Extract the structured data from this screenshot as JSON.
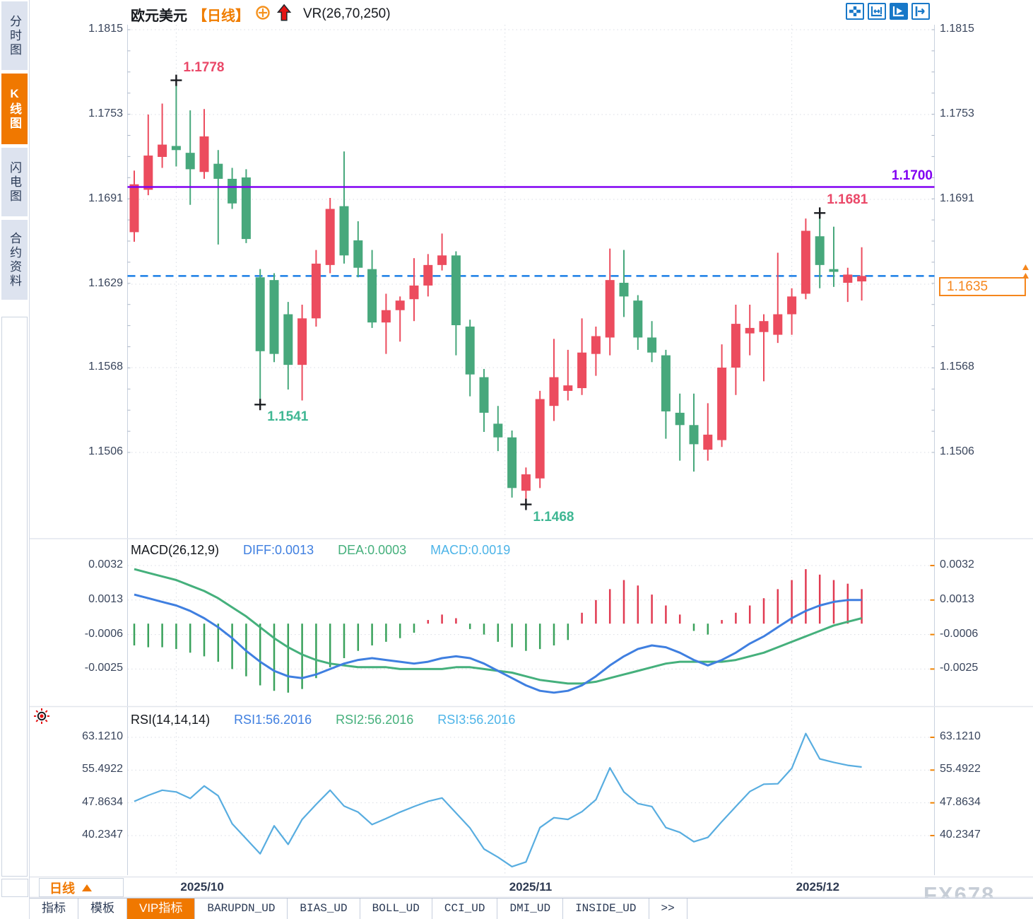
{
  "app": {
    "sidebar": [
      {
        "label": "分时图",
        "active": false
      },
      {
        "label": "K线图",
        "active": true
      },
      {
        "label": "闪电图",
        "active": false
      },
      {
        "label": "合约资料",
        "active": false
      }
    ],
    "title": {
      "symbol": "欧元美元",
      "period": "【日线】",
      "indicator": "VR(26,70,250)"
    },
    "toolbar_icons": [
      "crosshair-icon",
      "axis-range-icon",
      "axis-play-icon",
      "jump-latest-icon"
    ],
    "period_selector": {
      "label": "日线"
    },
    "bottom_tabs": [
      {
        "label": "指标",
        "active": false,
        "mono": false
      },
      {
        "label": "模板",
        "active": false,
        "mono": false
      },
      {
        "label": "VIP指标",
        "active": true,
        "mono": false
      },
      {
        "label": "BARUPDN_UD",
        "active": false,
        "mono": true
      },
      {
        "label": "BIAS_UD",
        "active": false,
        "mono": true
      },
      {
        "label": "BOLL_UD",
        "active": false,
        "mono": true
      },
      {
        "label": "CCI_UD",
        "active": false,
        "mono": true
      },
      {
        "label": "DMI_UD",
        "active": false,
        "mono": true
      },
      {
        "label": "INSIDE_UD",
        "active": false,
        "mono": true
      },
      {
        "label": ">>",
        "active": false,
        "mono": true
      }
    ],
    "watermark": "FX678",
    "colors": {
      "brand_orange": "#f07800",
      "tag_orange": "#f5861c",
      "toolbar_blue": "#1878c8"
    }
  },
  "chart_data": {
    "type": "candlestick",
    "title": "欧元美元 日线",
    "legend_position": "top",
    "grid": true,
    "main": {
      "y_ticks": [
        "1.1815",
        "1.1753",
        "1.1691",
        "1.1629",
        "1.1568",
        "1.1506"
      ],
      "y_top": 1.1815,
      "y_bottom": 1.1506,
      "up_color": "#ec4c5e",
      "down_color": "#47a87c",
      "hline_purple": {
        "price": 1.17,
        "label": "1.1700",
        "color": "#8100f2"
      },
      "hline_current": {
        "price": 1.1635,
        "label": "1.1635",
        "color": "#1a7ee6"
      },
      "candles": [
        [
          1.1667,
          1.1712,
          1.166,
          1.1702
        ],
        [
          1.1698,
          1.1753,
          1.1694,
          1.1723
        ],
        [
          1.1722,
          1.1761,
          1.1714,
          1.1731
        ],
        [
          1.173,
          1.1778,
          1.1715,
          1.1727
        ],
        [
          1.1725,
          1.1756,
          1.1687,
          1.1713
        ],
        [
          1.1711,
          1.1757,
          1.1706,
          1.1737
        ],
        [
          1.1717,
          1.1727,
          1.1658,
          1.1706
        ],
        [
          1.1706,
          1.1714,
          1.1684,
          1.1688
        ],
        [
          1.1707,
          1.1713,
          1.1659,
          1.1662
        ],
        [
          1.1634,
          1.164,
          1.1541,
          1.158
        ],
        [
          1.1632,
          1.1637,
          1.1572,
          1.1578
        ],
        [
          1.1607,
          1.1616,
          1.1552,
          1.157
        ],
        [
          1.157,
          1.1614,
          1.1544,
          1.1604
        ],
        [
          1.1604,
          1.1654,
          1.1598,
          1.1644
        ],
        [
          1.1643,
          1.1692,
          1.1637,
          1.1684
        ],
        [
          1.1686,
          1.1726,
          1.1644,
          1.165
        ],
        [
          1.1661,
          1.1675,
          1.1634,
          1.1641
        ],
        [
          1.164,
          1.1654,
          1.1597,
          1.1601
        ],
        [
          1.1601,
          1.1622,
          1.1578,
          1.161
        ],
        [
          1.161,
          1.162,
          1.1587,
          1.1617
        ],
        [
          1.1618,
          1.1648,
          1.1602,
          1.1628
        ],
        [
          1.1628,
          1.1651,
          1.162,
          1.1643
        ],
        [
          1.1643,
          1.1666,
          1.1639,
          1.165
        ],
        [
          1.165,
          1.1653,
          1.1577,
          1.1599
        ],
        [
          1.1598,
          1.1603,
          1.1547,
          1.1563
        ],
        [
          1.1561,
          1.1567,
          1.1521,
          1.1535
        ],
        [
          1.1527,
          1.154,
          1.1507,
          1.1517
        ],
        [
          1.1517,
          1.1522,
          1.1473,
          1.148
        ],
        [
          1.1478,
          1.1495,
          1.1468,
          1.149
        ],
        [
          1.1487,
          1.1551,
          1.148,
          1.1545
        ],
        [
          1.154,
          1.1589,
          1.1529,
          1.1561
        ],
        [
          1.1551,
          1.1581,
          1.1544,
          1.1555
        ],
        [
          1.1553,
          1.1604,
          1.1548,
          1.1579
        ],
        [
          1.1578,
          1.1598,
          1.1562,
          1.1591
        ],
        [
          1.159,
          1.1655,
          1.1577,
          1.1632
        ],
        [
          1.163,
          1.1654,
          1.1605,
          1.162
        ],
        [
          1.1617,
          1.1621,
          1.1581,
          1.159
        ],
        [
          1.159,
          1.1602,
          1.1572,
          1.1579
        ],
        [
          1.1577,
          1.1581,
          1.1516,
          1.1536
        ],
        [
          1.1535,
          1.1549,
          1.15,
          1.1526
        ],
        [
          1.1526,
          1.1549,
          1.1492,
          1.1512
        ],
        [
          1.1508,
          1.1542,
          1.15,
          1.1519
        ],
        [
          1.1515,
          1.1585,
          1.151,
          1.1568
        ],
        [
          1.1568,
          1.1614,
          1.1548,
          1.16
        ],
        [
          1.1593,
          1.1614,
          1.1577,
          1.1597
        ],
        [
          1.1594,
          1.1607,
          1.1558,
          1.1602
        ],
        [
          1.1592,
          1.1652,
          1.1586,
          1.1607
        ],
        [
          1.1607,
          1.1626,
          1.1592,
          1.162
        ],
        [
          1.1622,
          1.1677,
          1.1618,
          1.1668
        ],
        [
          1.1664,
          1.1681,
          1.1626,
          1.1643
        ],
        [
          1.164,
          1.1671,
          1.1627,
          1.1638
        ],
        [
          1.163,
          1.1641,
          1.1616,
          1.1636
        ],
        [
          1.1631,
          1.1656,
          1.1617,
          1.1635
        ]
      ],
      "marks": [
        {
          "index": 3,
          "side": "high",
          "label": "1.1778",
          "color": "#ea4868"
        },
        {
          "index": 9,
          "side": "low",
          "label": "1.1541",
          "color": "#3fb793"
        },
        {
          "index": 28,
          "side": "low",
          "label": "1.1468",
          "color": "#3fb793"
        },
        {
          "index": 49,
          "side": "high",
          "label": "1.1681",
          "color": "#ea4868"
        }
      ],
      "x_labels": [
        {
          "label": "2025/10",
          "index": 3
        },
        {
          "label": "2025/11",
          "index": 26.5
        },
        {
          "label": "2025/12",
          "index": 47
        }
      ]
    },
    "macd": {
      "title": "MACD(26,12,9)",
      "readouts": [
        {
          "text": "DIFF:0.0013",
          "color": "#3f7fe0"
        },
        {
          "text": "DEA:0.0003",
          "color": "#45b07c"
        },
        {
          "text": "MACD:0.0019",
          "color": "#4db4e8"
        }
      ],
      "y_ticks": [
        "0.0032",
        "0.0013",
        "-0.0006",
        "-0.0025"
      ],
      "hist_up_color": "#e13b52",
      "hist_down_color": "#3aa25c",
      "hist": [
        -0.0012,
        -0.0013,
        -0.0013,
        -0.0014,
        -0.0016,
        -0.0018,
        -0.0021,
        -0.0025,
        -0.0029,
        -0.0034,
        -0.0037,
        -0.0038,
        -0.0036,
        -0.003,
        -0.0024,
        -0.0019,
        -0.0015,
        -0.0012,
        -0.001,
        -0.0008,
        -0.0005,
        0.0002,
        0.0005,
        0.0003,
        -0.0003,
        -0.0006,
        -0.001,
        -0.0013,
        -0.0015,
        -0.0014,
        -0.0012,
        -0.0009,
        0.0006,
        0.0013,
        0.0019,
        0.0024,
        0.0021,
        0.0016,
        0.001,
        0.0005,
        -0.0004,
        -0.0006,
        0.0002,
        0.0006,
        0.001,
        0.0014,
        0.0019,
        0.0024,
        0.003,
        0.0027,
        0.0024,
        0.0022,
        0.0019
      ],
      "diff": [
        0.0016,
        0.0014,
        0.0012,
        0.001,
        0.0007,
        0.0003,
        -0.0002,
        -0.0008,
        -0.0015,
        -0.0021,
        -0.0026,
        -0.0029,
        -0.003,
        -0.0028,
        -0.0025,
        -0.0022,
        -0.002,
        -0.0019,
        -0.002,
        -0.0021,
        -0.0022,
        -0.0021,
        -0.0019,
        -0.0018,
        -0.0019,
        -0.0022,
        -0.0026,
        -0.003,
        -0.0034,
        -0.0037,
        -0.0038,
        -0.0037,
        -0.0034,
        -0.0029,
        -0.0023,
        -0.0018,
        -0.0014,
        -0.0012,
        -0.0013,
        -0.0016,
        -0.002,
        -0.0023,
        -0.002,
        -0.0016,
        -0.0011,
        -0.0007,
        -0.0002,
        0.0003,
        0.0007,
        0.001,
        0.0012,
        0.0013,
        0.0013
      ],
      "dea": [
        0.003,
        0.0028,
        0.0026,
        0.0024,
        0.0021,
        0.0018,
        0.0014,
        0.0009,
        0.0004,
        -0.0002,
        -0.0008,
        -0.0013,
        -0.0017,
        -0.002,
        -0.0022,
        -0.0023,
        -0.0024,
        -0.0024,
        -0.0024,
        -0.0025,
        -0.0025,
        -0.0025,
        -0.0025,
        -0.0024,
        -0.0024,
        -0.0025,
        -0.0026,
        -0.0027,
        -0.0029,
        -0.0031,
        -0.0032,
        -0.0033,
        -0.0033,
        -0.0032,
        -0.003,
        -0.0028,
        -0.0026,
        -0.0024,
        -0.0022,
        -0.0021,
        -0.0021,
        -0.0021,
        -0.0021,
        -0.002,
        -0.0018,
        -0.0016,
        -0.0013,
        -0.001,
        -0.0007,
        -0.0004,
        -0.0001,
        0.0001,
        0.0003
      ],
      "diff_color": "#3f7fe0",
      "dea_color": "#45b07c"
    },
    "rsi": {
      "title": "RSI(14,14,14)",
      "readouts": [
        {
          "text": "RSI1:56.2016",
          "color": "#3f7fe0"
        },
        {
          "text": "RSI2:56.2016",
          "color": "#45b07c"
        },
        {
          "text": "RSI3:56.2016",
          "color": "#4db4e8"
        }
      ],
      "y_ticks": [
        "63.1210",
        "55.4922",
        "47.8634",
        "40.2347"
      ],
      "line_color": "#58ade0",
      "values": [
        48.2,
        49.6,
        50.8,
        50.4,
        48.9,
        51.8,
        49.5,
        43.0,
        39.5,
        36.0,
        42.5,
        38.2,
        44.0,
        47.5,
        50.8,
        47.1,
        45.7,
        42.8,
        44.2,
        45.7,
        47.0,
        48.2,
        49.0,
        45.5,
        42.0,
        37.1,
        35.2,
        33.0,
        34.1,
        42.1,
        44.4,
        44.0,
        45.8,
        48.6,
        56.0,
        50.4,
        47.7,
        47.0,
        42.1,
        41.0,
        38.8,
        39.8,
        43.5,
        47.0,
        50.5,
        52.2,
        52.3,
        55.9,
        64.0,
        58.1,
        57.3,
        56.6,
        56.2
      ]
    }
  }
}
